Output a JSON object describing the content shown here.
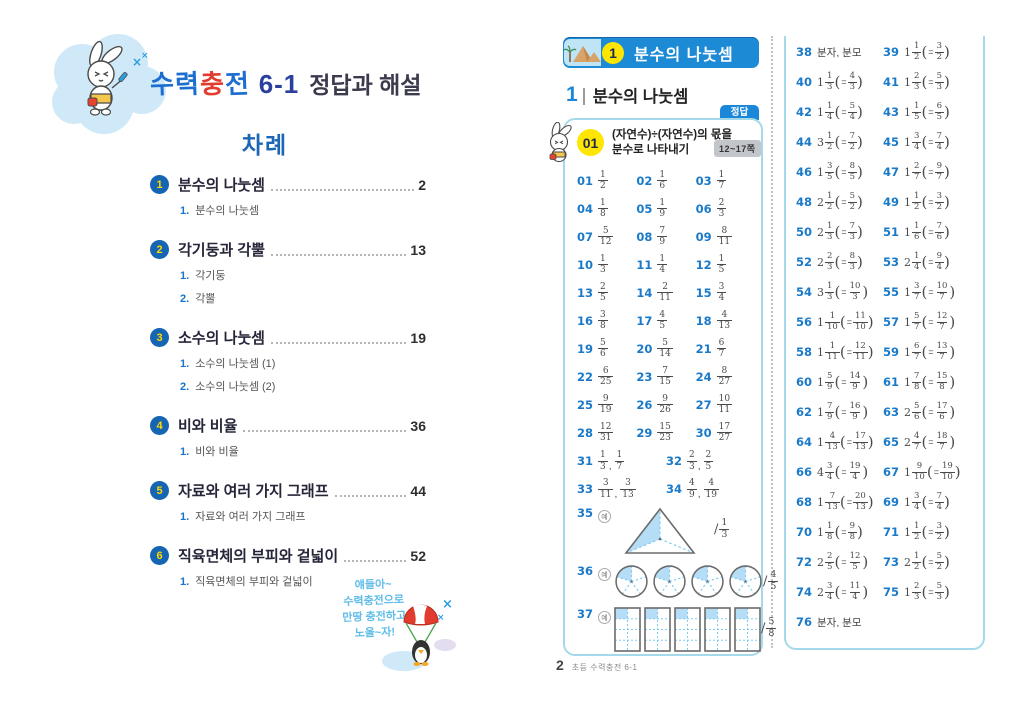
{
  "colors": {
    "accent_blue": "#1b87d9",
    "answer_number_blue": "#1a7ac9",
    "box_border": "#a5d9e9",
    "highlight_yellow": "#ffe600",
    "shade_blue": "#b5ddf6",
    "brand_red": "#e23c2e",
    "brand_blue": "#1c6fd0",
    "toc_circle_blue": "#1565b2",
    "toc_num_yellow": "#ffd900"
  },
  "left_page": {
    "brand_chars": [
      {
        "ch": "수",
        "color": "#1c6fd0"
      },
      {
        "ch": "력",
        "color": "#1c6fd0"
      },
      {
        "ch": "충",
        "color": "#e23c2e"
      },
      {
        "ch": "전",
        "color": "#1c6fd0"
      }
    ],
    "edition": "6-1",
    "subtitle": "정답과 해설",
    "toc_title": "차례",
    "toc": [
      {
        "num": "1",
        "title": "분수의 나눗셈",
        "page": "2",
        "subs": [
          {
            "n": "1.",
            "t": "분수의 나눗셈"
          }
        ]
      },
      {
        "num": "2",
        "title": "각기둥과 각뿔",
        "page": "13",
        "subs": [
          {
            "n": "1.",
            "t": "각기둥"
          },
          {
            "n": "2.",
            "t": "각뿔"
          }
        ]
      },
      {
        "num": "3",
        "title": "소수의 나눗셈",
        "page": "19",
        "subs": [
          {
            "n": "1.",
            "t": "소수의 나눗셈 (1)"
          },
          {
            "n": "2.",
            "t": "소수의 나눗셈 (2)"
          }
        ]
      },
      {
        "num": "4",
        "title": "비와 비율",
        "page": "36",
        "subs": [
          {
            "n": "1.",
            "t": "비와 비율"
          }
        ]
      },
      {
        "num": "5",
        "title": "자료와 여러 가지 그래프",
        "page": "44",
        "subs": [
          {
            "n": "1.",
            "t": "자료와 여러 가지 그래프"
          }
        ]
      },
      {
        "num": "6",
        "title": "직육면체의 부피와 겉넓이",
        "page": "52",
        "subs": [
          {
            "n": "1.",
            "t": "직육면체의 부피와 겉넓이"
          }
        ]
      }
    ],
    "mascot_note_lines": [
      "얘들아~",
      "수력충전으로",
      "만땅 충전하고",
      "노올~자!"
    ]
  },
  "right_page": {
    "chapter_badge": "1",
    "chapter_title": "분수의 나눗셈",
    "section_num": "1",
    "section_title": "분수의 나눗셈",
    "answer_tab": "정답",
    "topic": {
      "num": "01",
      "title_line1": "(자연수)÷(자연수)의 몫을",
      "title_line2": "분수로 나타내기",
      "pages": "12~17쪽"
    },
    "answers_part1": {
      "rows3": [
        [
          {
            "no": "01",
            "f": [
              1,
              2
            ]
          },
          {
            "no": "02",
            "f": [
              1,
              6
            ]
          },
          {
            "no": "03",
            "f": [
              1,
              7
            ]
          }
        ],
        [
          {
            "no": "04",
            "f": [
              1,
              8
            ]
          },
          {
            "no": "05",
            "f": [
              1,
              9
            ]
          },
          {
            "no": "06",
            "f": [
              2,
              3
            ]
          }
        ],
        [
          {
            "no": "07",
            "f": [
              5,
              12
            ]
          },
          {
            "no": "08",
            "f": [
              7,
              9
            ]
          },
          {
            "no": "09",
            "f": [
              8,
              11
            ]
          }
        ],
        [
          {
            "no": "10",
            "f": [
              1,
              3
            ]
          },
          {
            "no": "11",
            "f": [
              1,
              4
            ]
          },
          {
            "no": "12",
            "f": [
              1,
              5
            ]
          }
        ],
        [
          {
            "no": "13",
            "f": [
              2,
              5
            ]
          },
          {
            "no": "14",
            "f": [
              2,
              11
            ]
          },
          {
            "no": "15",
            "f": [
              3,
              4
            ]
          }
        ],
        [
          {
            "no": "16",
            "f": [
              3,
              8
            ]
          },
          {
            "no": "17",
            "f": [
              4,
              5
            ]
          },
          {
            "no": "18",
            "f": [
              4,
              13
            ]
          }
        ],
        [
          {
            "no": "19",
            "f": [
              5,
              6
            ]
          },
          {
            "no": "20",
            "f": [
              5,
              14
            ]
          },
          {
            "no": "21",
            "f": [
              6,
              7
            ]
          }
        ],
        [
          {
            "no": "22",
            "f": [
              6,
              25
            ]
          },
          {
            "no": "23",
            "f": [
              7,
              15
            ]
          },
          {
            "no": "24",
            "f": [
              8,
              27
            ]
          }
        ],
        [
          {
            "no": "25",
            "f": [
              9,
              19
            ]
          },
          {
            "no": "26",
            "f": [
              9,
              26
            ]
          },
          {
            "no": "27",
            "f": [
              10,
              11
            ]
          }
        ],
        [
          {
            "no": "28",
            "f": [
              12,
              31
            ]
          },
          {
            "no": "29",
            "f": [
              15,
              23
            ]
          },
          {
            "no": "30",
            "f": [
              17,
              27
            ]
          }
        ]
      ],
      "rows2": [
        [
          {
            "no": "31",
            "fs": [
              [
                1,
                3
              ],
              [
                1,
                7
              ]
            ]
          },
          {
            "no": "32",
            "fs": [
              [
                2,
                3
              ],
              [
                2,
                5
              ]
            ]
          }
        ],
        [
          {
            "no": "33",
            "fs": [
              [
                3,
                11
              ],
              [
                3,
                13
              ]
            ]
          },
          {
            "no": "34",
            "fs": [
              [
                4,
                9
              ],
              [
                4,
                19
              ]
            ]
          }
        ]
      ],
      "diagrams": [
        {
          "no": "35",
          "example_mark": "예",
          "kind": "triangle",
          "shapes": 1,
          "parts": 3,
          "shaded_per_shape": 1,
          "answer": [
            1,
            3
          ]
        },
        {
          "no": "36",
          "example_mark": "예",
          "kind": "circles",
          "shapes": 4,
          "parts": 5,
          "shaded_per_shape": 1,
          "answer": [
            4,
            5
          ]
        },
        {
          "no": "37",
          "example_mark": "예",
          "kind": "grids",
          "shapes": 5,
          "parts": 8,
          "shaded_per_shape": 1,
          "answer": [
            5,
            8
          ]
        }
      ]
    },
    "answers_part2": {
      "items": [
        {
          "no": "38",
          "text": "분자, 분모"
        },
        {
          "no": "39",
          "m": [
            1,
            1,
            2
          ],
          "e": [
            3,
            2
          ]
        },
        {
          "no": "40",
          "m": [
            1,
            1,
            3
          ],
          "e": [
            4,
            3
          ]
        },
        {
          "no": "41",
          "m": [
            1,
            2,
            3
          ],
          "e": [
            5,
            3
          ]
        },
        {
          "no": "42",
          "m": [
            1,
            1,
            4
          ],
          "e": [
            5,
            4
          ]
        },
        {
          "no": "43",
          "m": [
            1,
            1,
            5
          ],
          "e": [
            6,
            5
          ]
        },
        {
          "no": "44",
          "m": [
            3,
            1,
            2
          ],
          "e": [
            7,
            2
          ]
        },
        {
          "no": "45",
          "m": [
            1,
            3,
            4
          ],
          "e": [
            7,
            4
          ]
        },
        {
          "no": "46",
          "m": [
            1,
            3,
            5
          ],
          "e": [
            8,
            5
          ]
        },
        {
          "no": "47",
          "m": [
            1,
            2,
            7
          ],
          "e": [
            9,
            7
          ]
        },
        {
          "no": "48",
          "m": [
            2,
            1,
            2
          ],
          "e": [
            5,
            2
          ]
        },
        {
          "no": "49",
          "m": [
            1,
            1,
            2
          ],
          "e": [
            3,
            2
          ]
        },
        {
          "no": "50",
          "m": [
            2,
            1,
            3
          ],
          "e": [
            7,
            3
          ]
        },
        {
          "no": "51",
          "m": [
            1,
            1,
            6
          ],
          "e": [
            7,
            6
          ]
        },
        {
          "no": "52",
          "m": [
            2,
            2,
            3
          ],
          "e": [
            8,
            3
          ]
        },
        {
          "no": "53",
          "m": [
            2,
            1,
            4
          ],
          "e": [
            9,
            4
          ]
        },
        {
          "no": "54",
          "m": [
            3,
            1,
            3
          ],
          "e": [
            10,
            3
          ]
        },
        {
          "no": "55",
          "m": [
            1,
            3,
            7
          ],
          "e": [
            10,
            7
          ]
        },
        {
          "no": "56",
          "m": [
            1,
            1,
            10
          ],
          "e": [
            11,
            10
          ]
        },
        {
          "no": "57",
          "m": [
            1,
            5,
            7
          ],
          "e": [
            12,
            7
          ]
        },
        {
          "no": "58",
          "m": [
            1,
            1,
            11
          ],
          "e": [
            12,
            11
          ]
        },
        {
          "no": "59",
          "m": [
            1,
            6,
            7
          ],
          "e": [
            13,
            7
          ]
        },
        {
          "no": "60",
          "m": [
            1,
            5,
            9
          ],
          "e": [
            14,
            9
          ]
        },
        {
          "no": "61",
          "m": [
            1,
            7,
            8
          ],
          "e": [
            15,
            8
          ]
        },
        {
          "no": "62",
          "m": [
            1,
            7,
            9
          ],
          "e": [
            16,
            9
          ]
        },
        {
          "no": "63",
          "m": [
            2,
            5,
            6
          ],
          "e": [
            17,
            6
          ]
        },
        {
          "no": "64",
          "m": [
            1,
            4,
            13
          ],
          "e": [
            17,
            13
          ]
        },
        {
          "no": "65",
          "m": [
            2,
            4,
            7
          ],
          "e": [
            18,
            7
          ]
        },
        {
          "no": "66",
          "m": [
            4,
            3,
            4
          ],
          "e": [
            19,
            4
          ]
        },
        {
          "no": "67",
          "m": [
            1,
            9,
            10
          ],
          "e": [
            19,
            10
          ]
        },
        {
          "no": "68",
          "m": [
            1,
            7,
            13
          ],
          "e": [
            20,
            13
          ]
        },
        {
          "no": "69",
          "m": [
            1,
            3,
            4
          ],
          "e": [
            7,
            4
          ]
        },
        {
          "no": "70",
          "m": [
            1,
            1,
            8
          ],
          "e": [
            9,
            8
          ]
        },
        {
          "no": "71",
          "m": [
            1,
            1,
            2
          ],
          "e": [
            3,
            2
          ]
        },
        {
          "no": "72",
          "m": [
            2,
            2,
            5
          ],
          "e": [
            12,
            5
          ]
        },
        {
          "no": "73",
          "m": [
            2,
            1,
            2
          ],
          "e": [
            5,
            2
          ]
        },
        {
          "no": "74",
          "m": [
            2,
            3,
            4
          ],
          "e": [
            11,
            4
          ]
        },
        {
          "no": "75",
          "m": [
            1,
            2,
            3
          ],
          "e": [
            5,
            3
          ]
        },
        {
          "no": "76",
          "text": "분자, 분모"
        }
      ]
    },
    "footer": {
      "page": "2",
      "book": "초등 수력충전 6-1"
    }
  }
}
